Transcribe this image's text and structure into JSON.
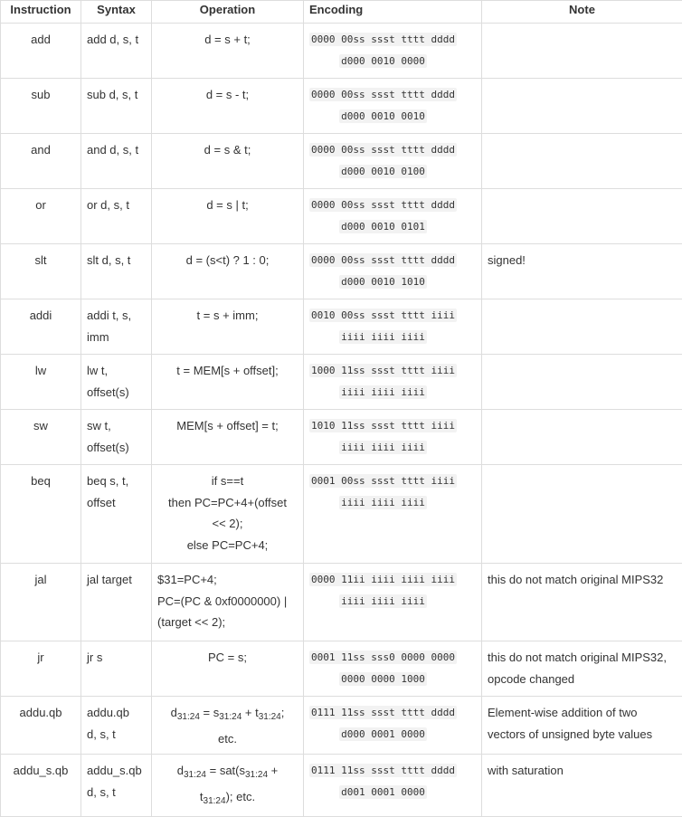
{
  "headers": [
    "Instruction",
    "Syntax",
    "Operation",
    "Encoding",
    "Note"
  ],
  "rows": [
    {
      "instr": "add",
      "syntax": [
        "add d, s, t"
      ],
      "op": [
        "d = s + t;"
      ],
      "enc": [
        "0000 00ss ssst tttt dddd",
        "d000 0010 0000"
      ],
      "note": ""
    },
    {
      "instr": "sub",
      "syntax": [
        "sub d, s, t"
      ],
      "op": [
        "d = s - t;"
      ],
      "enc": [
        "0000 00ss ssst tttt dddd",
        "d000 0010 0010"
      ],
      "note": ""
    },
    {
      "instr": "and",
      "syntax": [
        "and d, s, t"
      ],
      "op": [
        "d = s & t;"
      ],
      "enc": [
        "0000 00ss ssst tttt dddd",
        "d000 0010 0100"
      ],
      "note": ""
    },
    {
      "instr": "or",
      "syntax": [
        "or d, s, t"
      ],
      "op": [
        "d = s | t;"
      ],
      "enc": [
        "0000 00ss ssst tttt dddd",
        "d000 0010 0101"
      ],
      "note": ""
    },
    {
      "instr": "slt",
      "syntax": [
        "slt d, s, t"
      ],
      "op": [
        "d = (s<t) ? 1 : 0;"
      ],
      "enc": [
        "0000 00ss ssst tttt dddd",
        "d000 0010 1010"
      ],
      "note": "signed!"
    },
    {
      "instr": "addi",
      "syntax": [
        "addi t, s,",
        "imm"
      ],
      "op": [
        "t = s + imm;"
      ],
      "enc": [
        "0010 00ss ssst tttt iiii",
        "iiii iiii iiii"
      ],
      "note": ""
    },
    {
      "instr": "lw",
      "syntax": [
        "lw t,",
        "offset(s)"
      ],
      "op": [
        "t = MEM[s + offset];"
      ],
      "enc": [
        "1000 11ss ssst tttt iiii",
        "iiii iiii iiii"
      ],
      "note": ""
    },
    {
      "instr": "sw",
      "syntax": [
        "sw t,",
        "offset(s)"
      ],
      "op": [
        "MEM[s + offset] = t;"
      ],
      "enc": [
        "1010 11ss ssst tttt iiii",
        "iiii iiii iiii"
      ],
      "note": ""
    },
    {
      "instr": "beq",
      "syntax": [
        "beq s, t,",
        "offset"
      ],
      "op": [
        "if s==t",
        "then PC=PC+4+(offset",
        "<< 2);",
        "else PC=PC+4;"
      ],
      "enc": [
        "0001 00ss ssst tttt iiii",
        "iiii iiii iiii"
      ],
      "note": ""
    },
    {
      "instr": "jal",
      "syntax": [
        "jal target"
      ],
      "op_left": true,
      "op": [
        "$31=PC+4;",
        "PC=(PC & 0xf0000000) |",
        "(target << 2);"
      ],
      "enc": [
        "0000 11ii iiii iiii iiii",
        "iiii iiii iiii"
      ],
      "note": "this do not match original MIPS32"
    },
    {
      "instr": "jr",
      "syntax": [
        "jr s"
      ],
      "op": [
        "PC = s;"
      ],
      "enc": [
        "0001 11ss sss0 0000 0000",
        "0000 0000 1000"
      ],
      "note": "this do not match original MIPS32, opcode changed"
    },
    {
      "instr": "addu.qb",
      "syntax": [
        "addu.qb",
        "d, s, t"
      ],
      "op_sub": {
        "d": "d",
        "s": "s",
        "t": "t",
        "range": "31:24",
        "line1_tail": ";",
        "line2": "etc."
      },
      "enc": [
        "0111 11ss ssst tttt dddd",
        "d000 0001 0000"
      ],
      "note": "Element-wise addition of two vectors of unsigned byte values"
    },
    {
      "instr": "addu_s.qb",
      "syntax": [
        "addu_s.qb",
        "d, s, t"
      ],
      "op_sat": {
        "range": "31:24",
        "line2_tail": "); etc."
      },
      "enc": [
        "0111 11ss ssst tttt dddd",
        "d001 0001 0000"
      ],
      "note": "with saturation"
    }
  ]
}
